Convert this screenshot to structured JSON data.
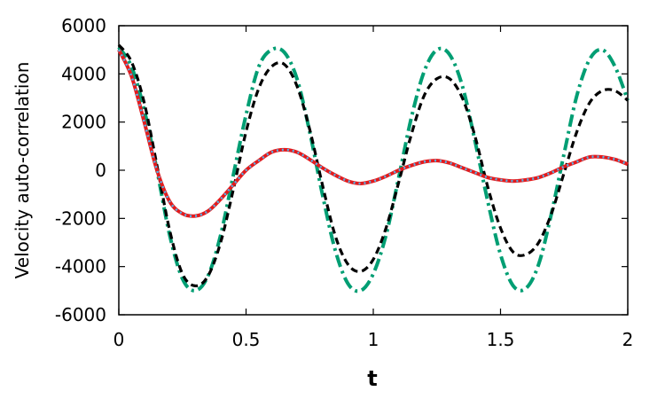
{
  "chart_data": {
    "type": "line",
    "title": "",
    "xlabel": "t",
    "ylabel": "Velocity auto-correlation",
    "xlim": [
      0,
      2
    ],
    "ylim": [
      -6000,
      6000
    ],
    "xticks": [
      0,
      0.5,
      1,
      1.5,
      2
    ],
    "xtick_labels": [
      "0",
      "0.5",
      "1",
      "1.5",
      "2"
    ],
    "yticks": [
      -6000,
      -4000,
      -2000,
      0,
      2000,
      4000,
      6000
    ],
    "ytick_labels": [
      "-6000",
      "-4000",
      "-2000",
      "0",
      "2000",
      "4000",
      "6000"
    ],
    "grid": false,
    "legend": "none",
    "series": [
      {
        "color": "#009E73",
        "dash": "dash-dot",
        "points": [
          [
            0,
            5100
          ],
          [
            0.05,
            4300
          ],
          [
            0.1,
            2500
          ],
          [
            0.15,
            0
          ],
          [
            0.2,
            -2700
          ],
          [
            0.25,
            -4500
          ],
          [
            0.3,
            -5000
          ],
          [
            0.35,
            -4400
          ],
          [
            0.4,
            -2700
          ],
          [
            0.45,
            -200
          ],
          [
            0.5,
            2300
          ],
          [
            0.55,
            4300
          ],
          [
            0.6,
            5000
          ],
          [
            0.65,
            4900
          ],
          [
            0.7,
            3800
          ],
          [
            0.75,
            1600
          ],
          [
            0.8,
            -1000
          ],
          [
            0.85,
            -3300
          ],
          [
            0.9,
            -4700
          ],
          [
            0.95,
            -5000
          ],
          [
            1.0,
            -4300
          ],
          [
            1.05,
            -2700
          ],
          [
            1.1,
            -300
          ],
          [
            1.15,
            2200
          ],
          [
            1.2,
            4100
          ],
          [
            1.25,
            5000
          ],
          [
            1.3,
            4800
          ],
          [
            1.35,
            3500
          ],
          [
            1.4,
            1200
          ],
          [
            1.45,
            -1300
          ],
          [
            1.5,
            -3500
          ],
          [
            1.55,
            -4800
          ],
          [
            1.6,
            -4900
          ],
          [
            1.65,
            -3900
          ],
          [
            1.7,
            -1800
          ],
          [
            1.75,
            700
          ],
          [
            1.8,
            3100
          ],
          [
            1.85,
            4600
          ],
          [
            1.9,
            5000
          ],
          [
            1.95,
            4300
          ],
          [
            2.0,
            2900
          ]
        ]
      },
      {
        "color": "#000000",
        "dash": "dash",
        "points": [
          [
            0,
            5200
          ],
          [
            0.05,
            4500
          ],
          [
            0.1,
            2800
          ],
          [
            0.15,
            200
          ],
          [
            0.2,
            -2500
          ],
          [
            0.25,
            -4300
          ],
          [
            0.3,
            -4800
          ],
          [
            0.35,
            -4400
          ],
          [
            0.4,
            -3000
          ],
          [
            0.45,
            -800
          ],
          [
            0.5,
            1600
          ],
          [
            0.55,
            3400
          ],
          [
            0.6,
            4300
          ],
          [
            0.65,
            4400
          ],
          [
            0.7,
            3500
          ],
          [
            0.75,
            1700
          ],
          [
            0.8,
            -600
          ],
          [
            0.85,
            -2700
          ],
          [
            0.9,
            -3900
          ],
          [
            0.95,
            -4200
          ],
          [
            1.0,
            -3700
          ],
          [
            1.05,
            -2400
          ],
          [
            1.1,
            -500
          ],
          [
            1.15,
            1500
          ],
          [
            1.2,
            3100
          ],
          [
            1.25,
            3800
          ],
          [
            1.3,
            3800
          ],
          [
            1.35,
            3000
          ],
          [
            1.4,
            1400
          ],
          [
            1.45,
            -700
          ],
          [
            1.5,
            -2400
          ],
          [
            1.55,
            -3400
          ],
          [
            1.6,
            -3500
          ],
          [
            1.65,
            -3000
          ],
          [
            1.7,
            -1800
          ],
          [
            1.75,
            -100
          ],
          [
            1.8,
            1600
          ],
          [
            1.85,
            2800
          ],
          [
            1.9,
            3300
          ],
          [
            1.95,
            3300
          ],
          [
            2.0,
            2900
          ]
        ]
      },
      {
        "color": "#E41A1C",
        "dash": "solid",
        "points": [
          [
            0,
            5000
          ],
          [
            0.05,
            3900
          ],
          [
            0.1,
            2000
          ],
          [
            0.15,
            0
          ],
          [
            0.2,
            -1300
          ],
          [
            0.25,
            -1800
          ],
          [
            0.3,
            -1900
          ],
          [
            0.35,
            -1700
          ],
          [
            0.4,
            -1200
          ],
          [
            0.45,
            -600
          ],
          [
            0.5,
            0
          ],
          [
            0.55,
            400
          ],
          [
            0.6,
            750
          ],
          [
            0.65,
            850
          ],
          [
            0.7,
            750
          ],
          [
            0.75,
            450
          ],
          [
            0.8,
            100
          ],
          [
            0.85,
            -200
          ],
          [
            0.9,
            -450
          ],
          [
            0.95,
            -550
          ],
          [
            1.0,
            -450
          ],
          [
            1.05,
            -250
          ],
          [
            1.1,
            0
          ],
          [
            1.15,
            200
          ],
          [
            1.2,
            350
          ],
          [
            1.25,
            400
          ],
          [
            1.3,
            300
          ],
          [
            1.35,
            100
          ],
          [
            1.4,
            -100
          ],
          [
            1.45,
            -300
          ],
          [
            1.5,
            -400
          ],
          [
            1.55,
            -450
          ],
          [
            1.6,
            -400
          ],
          [
            1.65,
            -300
          ],
          [
            1.7,
            -100
          ],
          [
            1.75,
            150
          ],
          [
            1.8,
            350
          ],
          [
            1.85,
            550
          ],
          [
            1.9,
            550
          ],
          [
            1.95,
            450
          ],
          [
            2.0,
            250
          ]
        ]
      },
      {
        "color": "#56B4E9",
        "dash": "dot",
        "points": [
          [
            0,
            5000
          ],
          [
            0.05,
            3900
          ],
          [
            0.1,
            2000
          ],
          [
            0.15,
            0
          ],
          [
            0.2,
            -1300
          ],
          [
            0.25,
            -1800
          ],
          [
            0.3,
            -1900
          ],
          [
            0.35,
            -1700
          ],
          [
            0.4,
            -1200
          ],
          [
            0.45,
            -600
          ],
          [
            0.5,
            0
          ],
          [
            0.55,
            400
          ],
          [
            0.6,
            750
          ],
          [
            0.65,
            850
          ],
          [
            0.7,
            750
          ],
          [
            0.75,
            450
          ],
          [
            0.8,
            100
          ],
          [
            0.85,
            -200
          ],
          [
            0.9,
            -450
          ],
          [
            0.95,
            -550
          ],
          [
            1.0,
            -450
          ],
          [
            1.05,
            -250
          ],
          [
            1.1,
            0
          ],
          [
            1.15,
            200
          ],
          [
            1.2,
            350
          ],
          [
            1.25,
            400
          ],
          [
            1.3,
            300
          ],
          [
            1.35,
            100
          ],
          [
            1.4,
            -100
          ],
          [
            1.45,
            -300
          ],
          [
            1.5,
            -400
          ],
          [
            1.55,
            -450
          ],
          [
            1.6,
            -400
          ],
          [
            1.65,
            -300
          ],
          [
            1.7,
            -100
          ],
          [
            1.75,
            150
          ],
          [
            1.8,
            350
          ],
          [
            1.85,
            550
          ],
          [
            1.9,
            550
          ],
          [
            1.95,
            450
          ],
          [
            2.0,
            250
          ]
        ]
      }
    ]
  }
}
